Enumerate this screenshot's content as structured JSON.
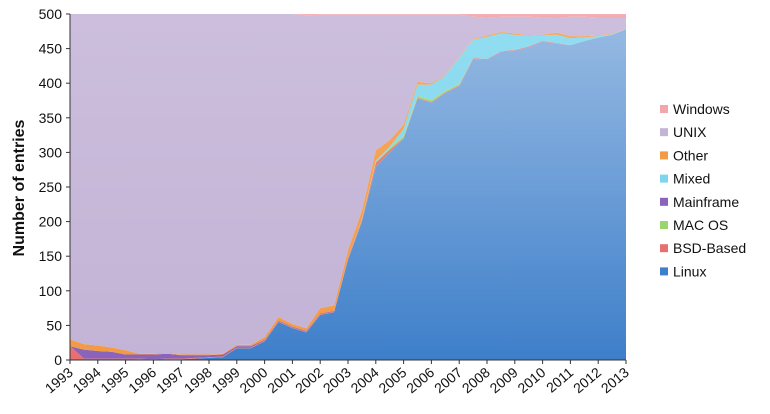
{
  "chart_data": {
    "type": "area",
    "stacked": true,
    "title": "",
    "xlabel": "",
    "ylabel": "Number of entries",
    "ylim": [
      0,
      500
    ],
    "yticks": [
      0,
      50,
      100,
      150,
      200,
      250,
      300,
      350,
      400,
      450,
      500
    ],
    "grid": false,
    "legend_position": "right",
    "x": [
      1993,
      1993.5,
      1994,
      1994.5,
      1995,
      1995.5,
      1996,
      1996.5,
      1997,
      1997.5,
      1998,
      1998.5,
      1999,
      1999.5,
      2000,
      2000.5,
      2001,
      2001.5,
      2002,
      2002.5,
      2003,
      2003.5,
      2004,
      2004.5,
      2005,
      2005.5,
      2006,
      2006.5,
      2007,
      2007.5,
      2008,
      2008.5,
      2009,
      2009.5,
      2010,
      2010.5,
      2011,
      2011.5,
      2012,
      2012.5,
      2013
    ],
    "x_tick_labels": [
      "1993",
      "1994",
      "1995",
      "1996",
      "1997",
      "1998",
      "1999",
      "2000",
      "2001",
      "2002",
      "2003",
      "2004",
      "2005",
      "2006",
      "2007",
      "2008",
      "2009",
      "2010",
      "2011",
      "2012",
      "2013"
    ],
    "series": [
      {
        "name": "Linux",
        "color": "#3e7fca",
        "values": [
          0,
          0,
          0,
          0,
          0,
          1,
          0,
          1,
          1,
          2,
          3,
          4,
          17,
          17,
          27,
          55,
          46,
          40,
          65,
          69,
          145,
          200,
          279,
          300,
          320,
          378,
          372,
          386,
          396,
          435,
          434,
          445,
          447,
          452,
          460,
          457,
          455,
          461,
          466,
          470,
          478
        ]
      },
      {
        "name": "BSD-Based",
        "color": "#e86f6f",
        "values": [
          20,
          2,
          2,
          2,
          2,
          1,
          1,
          1,
          1,
          1,
          1,
          1,
          1,
          1,
          1,
          1,
          1,
          1,
          1,
          1,
          1,
          2,
          6,
          4,
          1,
          1,
          1,
          1,
          1,
          1,
          1,
          1,
          1,
          1,
          1,
          1,
          0,
          0,
          0,
          0,
          0
        ]
      },
      {
        "name": "MAC OS",
        "color": "#9ad46c",
        "values": [
          0,
          0,
          0,
          0,
          0,
          0,
          0,
          0,
          0,
          0,
          0,
          0,
          0,
          0,
          0,
          0,
          0,
          0,
          0,
          0,
          0,
          1,
          2,
          2,
          3,
          3,
          3,
          2,
          2,
          0,
          0,
          0,
          0,
          0,
          0,
          0,
          0,
          0,
          0,
          0,
          0
        ]
      },
      {
        "name": "Mainframe",
        "color": "#8a64ba",
        "values": [
          0,
          13,
          11,
          10,
          6,
          6,
          7,
          7,
          5,
          4,
          3,
          3,
          2,
          2,
          1,
          1,
          1,
          1,
          1,
          1,
          1,
          1,
          0,
          0,
          0,
          0,
          0,
          0,
          0,
          0,
          0,
          0,
          0,
          0,
          0,
          0,
          0,
          0,
          0,
          0,
          0
        ]
      },
      {
        "name": "Mixed",
        "color": "#7dd6ee",
        "values": [
          0,
          0,
          0,
          0,
          0,
          0,
          0,
          0,
          0,
          0,
          0,
          0,
          0,
          0,
          0,
          0,
          0,
          0,
          0,
          0,
          0,
          0,
          1,
          2,
          10,
          16,
          22,
          22,
          38,
          27,
          32,
          26,
          22,
          15,
          8,
          12,
          10,
          5,
          2,
          1,
          0
        ]
      },
      {
        "name": "Other",
        "color": "#f39a45",
        "values": [
          10,
          8,
          8,
          6,
          6,
          1,
          1,
          1,
          1,
          1,
          1,
          1,
          2,
          2,
          4,
          5,
          4,
          4,
          8,
          8,
          12,
          12,
          15,
          10,
          6,
          4,
          2,
          1,
          1,
          1,
          2,
          2,
          2,
          1,
          1,
          3,
          3,
          2,
          1,
          1,
          0
        ]
      },
      {
        "name": "UNIX",
        "color": "#c3b3d6",
        "values": [
          470,
          477,
          479,
          482,
          486,
          491,
          491,
          490,
          492,
          492,
          492,
          491,
          478,
          478,
          467,
          438,
          448,
          452,
          424,
          420,
          340,
          283,
          196,
          181,
          159,
          97,
          99,
          87,
          61,
          32,
          26,
          22,
          24,
          27,
          25,
          21,
          28,
          28,
          26,
          23,
          17
        ]
      },
      {
        "name": "Windows",
        "color": "#f2a6aa",
        "values": [
          0,
          0,
          0,
          0,
          0,
          0,
          0,
          0,
          0,
          0,
          0,
          0,
          0,
          0,
          0,
          0,
          0,
          2,
          1,
          1,
          1,
          1,
          1,
          1,
          1,
          1,
          1,
          1,
          1,
          5,
          5,
          4,
          4,
          4,
          5,
          7,
          4,
          4,
          5,
          5,
          5
        ]
      }
    ],
    "legend_order": [
      "Windows",
      "UNIX",
      "Other",
      "Mixed",
      "Mainframe",
      "MAC OS",
      "BSD-Based",
      "Linux"
    ]
  }
}
